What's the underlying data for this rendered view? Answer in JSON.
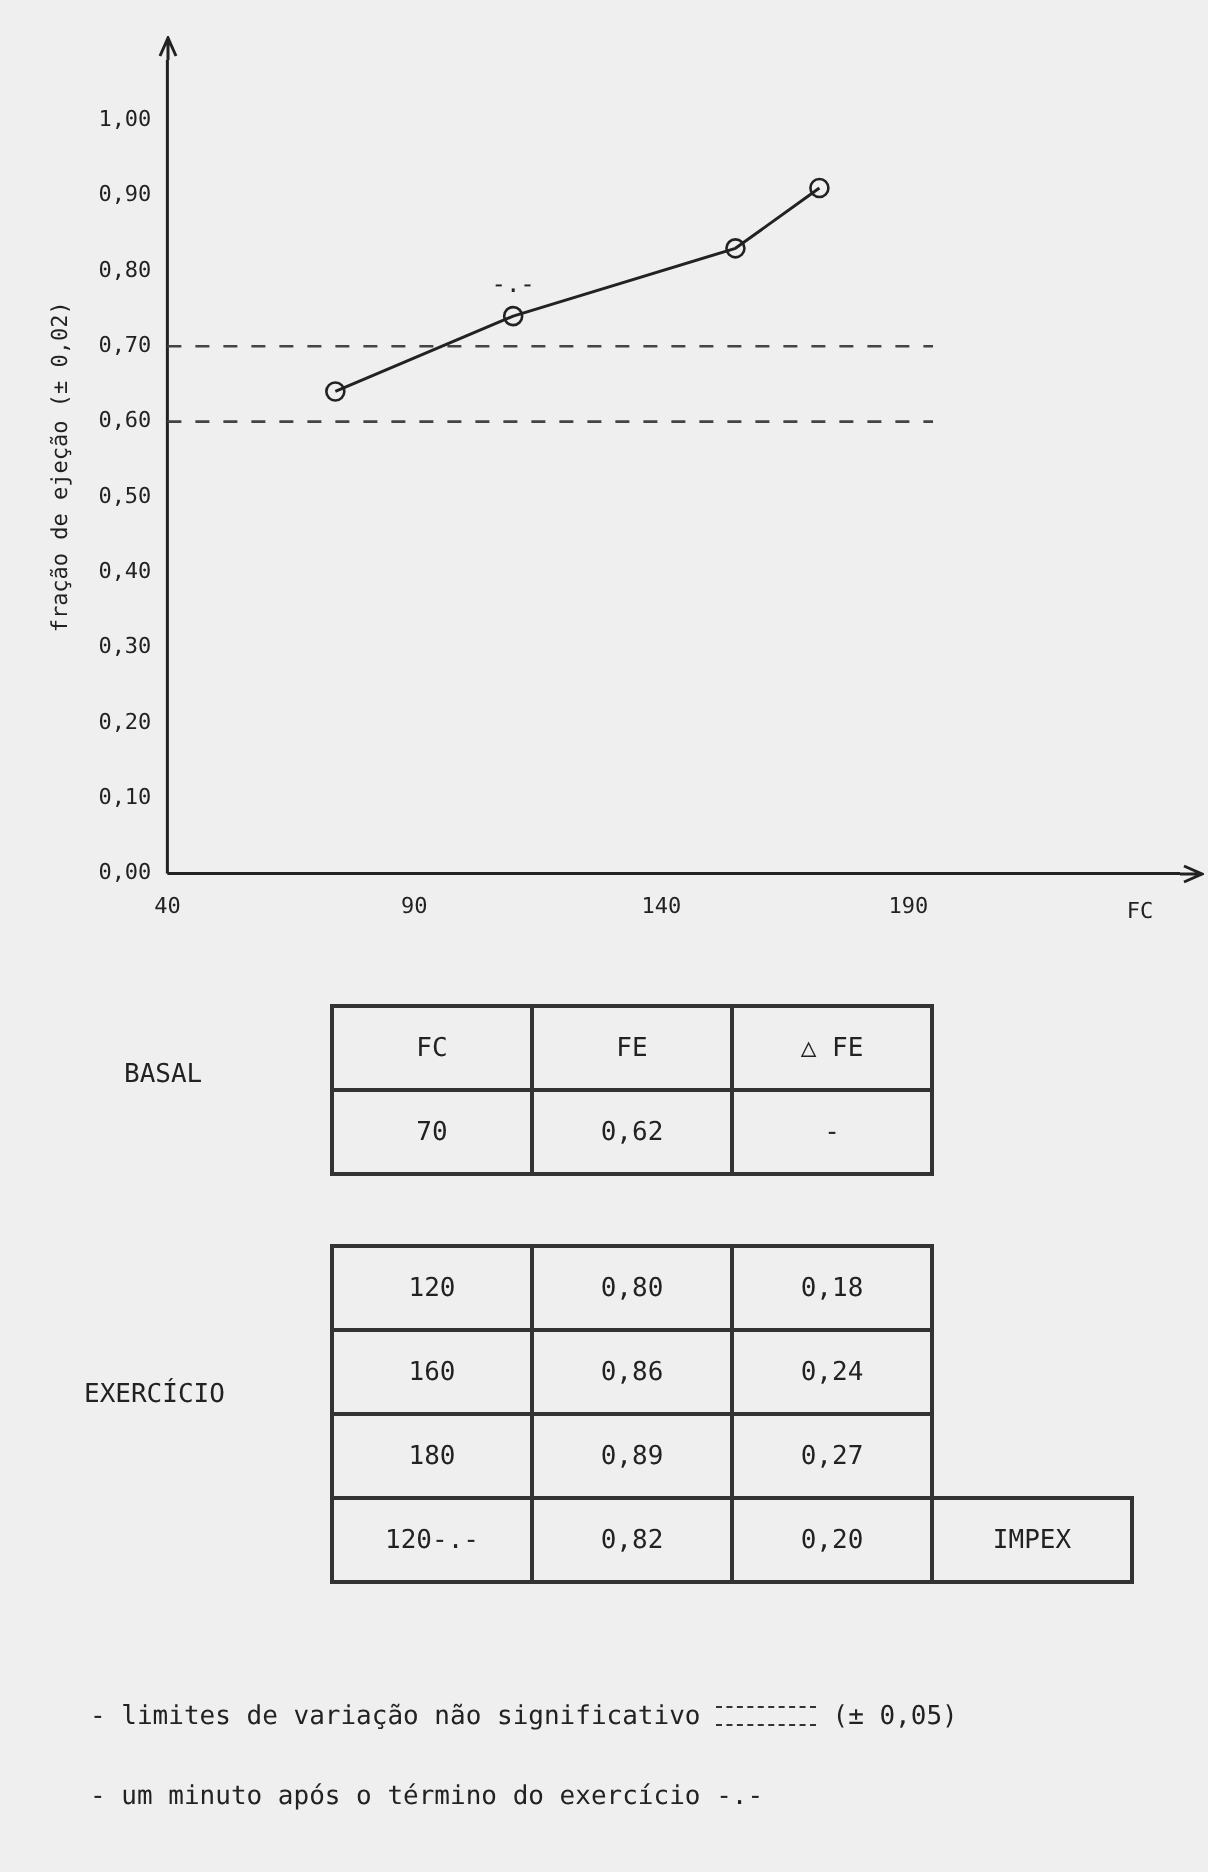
{
  "chart_data": [
    {
      "type": "line",
      "xlabel": "FC",
      "ylabel": "fração de ejeção (± 0,02)",
      "x": [
        74,
        110,
        155,
        172
      ],
      "series": [
        {
          "color": "#222222",
          "values": [
            0.64,
            0.74,
            0.83,
            0.91
          ]
        }
      ],
      "marker": "circle",
      "line_style": "solid",
      "grid": false,
      "legend": false,
      "xlim": [
        40,
        245
      ],
      "xticks": [
        40,
        90,
        140,
        190
      ],
      "ylim": [
        0,
        1.08
      ],
      "yticks": [
        {
          "value": 0,
          "label": "0,00"
        },
        {
          "value": 0.1,
          "label": "0,10"
        },
        {
          "value": 0.2,
          "label": "0,20"
        },
        {
          "value": 0.3,
          "label": "0,30"
        },
        {
          "value": 0.4,
          "label": "0,40"
        },
        {
          "value": 0.5,
          "label": "0,50"
        },
        {
          "value": 0.6,
          "label": "0,60"
        },
        {
          "value": 0.7,
          "label": "0,70"
        },
        {
          "value": 0.8,
          "label": "0,80"
        },
        {
          "value": 0.9,
          "label": "0,90"
        },
        {
          "value": 1,
          "label": "1,00"
        }
      ],
      "ref_lines": [
        {
          "axis": "y",
          "value": 0.7,
          "line_style": "dashed",
          "color": "#444444"
        },
        {
          "axis": "y",
          "value": 0.6,
          "line_style": "dashed",
          "color": "#444444"
        }
      ],
      "annotations": [
        {
          "text": "-.-",
          "x": 110,
          "y": 0.74
        },
        "- limites de variação não significativo",
        "(± 0,05)",
        "- um minuto após o término do exercício -.-"
      ]
    },
    {
      "type": "other",
      "annotations": [
        "BASAL",
        "FC",
        "FE",
        "△ FE",
        "70",
        "0,62",
        "-",
        "EXERCÍCIO",
        "120",
        "0,80",
        "0,18",
        "160",
        "0,86",
        "0,24",
        "180",
        "0,89",
        "0,27",
        "120-.-",
        "0,82",
        "0,20",
        "IMPEX"
      ]
    }
  ]
}
